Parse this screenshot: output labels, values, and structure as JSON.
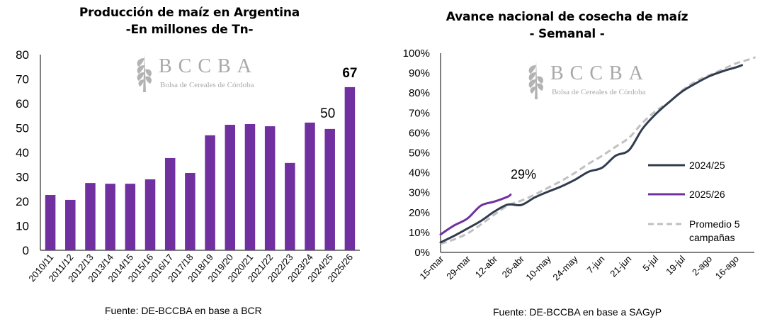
{
  "left": {
    "title_line1": "Producción de maíz en Argentina",
    "title_line2": "-En millones de Tn-",
    "source": "Fuente: DE-BCCBA en base a BCR",
    "watermark": {
      "logo": "wheat-icon",
      "name": "BCCBA",
      "subtitle": "Bolsa de Cereales de Córdoba"
    }
  },
  "right": {
    "title_line1": "Avance nacional de cosecha de maíz",
    "title_line2": "- Semanal -",
    "source": "Fuente: DE-BCCBA en base a SAGyP",
    "watermark": {
      "logo": "wheat-icon",
      "name": "BCCBA",
      "subtitle": "Bolsa de Cereales de Córdoba"
    }
  },
  "chart_data": [
    {
      "type": "bar",
      "title": "Producción de maíz en Argentina -En millones de Tn-",
      "xlabel": "",
      "ylabel": "",
      "ylim": [
        0,
        80
      ],
      "yticks": [
        0,
        10,
        20,
        30,
        40,
        50,
        60,
        70,
        80
      ],
      "grid": false,
      "color": "#7030A0",
      "categories": [
        "2010/11",
        "2011/12",
        "2012/13",
        "2013/14",
        "2014/15",
        "2015/16",
        "2016/17",
        "2017/18",
        "2018/19",
        "2019/20",
        "2020/21",
        "2021/22",
        "2022/23",
        "2023/24",
        "2024/25",
        "2025/26"
      ],
      "values": [
        22.6,
        20.6,
        27.5,
        27.2,
        27.2,
        29.0,
        37.7,
        31.6,
        47.0,
        51.3,
        51.6,
        50.7,
        35.7,
        52.2,
        49.6,
        66.7
      ],
      "data_labels": [
        {
          "category": "2024/25",
          "text": "50",
          "bold": false
        },
        {
          "category": "2025/26",
          "text": "67",
          "bold": true
        }
      ]
    },
    {
      "type": "line",
      "title": "Avance nacional de cosecha de maíz - Semanal -",
      "xlabel": "",
      "ylabel": "",
      "ylim": [
        0,
        100
      ],
      "yticks": [
        "0%",
        "10%",
        "20%",
        "30%",
        "40%",
        "50%",
        "60%",
        "70%",
        "80%",
        "90%",
        "100%"
      ],
      "grid": false,
      "legend_position": "right",
      "x_tick_labels": [
        "15-mar",
        "29-mar",
        "12-abr",
        "26-abr",
        "10-may",
        "24-may",
        "7-jun",
        "21-jun",
        "5-jul",
        "19-jul",
        "2-ago",
        "16-ago"
      ],
      "x_unit": "weeks since 15-mar",
      "series": [
        {
          "name": "2024/25",
          "color": "#323C4E",
          "style": "solid",
          "x": [
            0,
            1,
            2,
            3,
            4,
            5,
            6,
            7,
            8,
            9,
            10,
            11,
            12,
            13,
            14,
            15,
            16,
            17,
            18,
            19,
            20,
            21,
            22,
            22.4
          ],
          "values": [
            5,
            8.3,
            12,
            15.8,
            20.5,
            24,
            23.8,
            27.6,
            30.5,
            33.2,
            36.5,
            40.5,
            42.5,
            48.5,
            51.3,
            62,
            69.5,
            75.5,
            81,
            85,
            88.5,
            91,
            93,
            94
          ]
        },
        {
          "name": "2025/26",
          "color": "#7030A0",
          "style": "solid",
          "x": [
            0,
            1,
            2,
            3,
            4,
            5,
            5.2
          ],
          "values": [
            9,
            13.5,
            17,
            23.5,
            25.5,
            28,
            29
          ],
          "end_label": "29%"
        },
        {
          "name": "Promedio 5 campañas",
          "color": "#C0C0C0",
          "style": "dashed",
          "x": [
            0,
            1,
            2,
            3,
            4,
            5,
            6,
            7,
            8,
            9,
            10,
            11,
            12,
            13,
            14,
            15,
            16,
            17,
            18,
            19,
            20,
            21,
            22,
            23,
            23.4
          ],
          "values": [
            4.3,
            6.5,
            9.5,
            14,
            19,
            23.5,
            26,
            29,
            32.5,
            36,
            40,
            44.5,
            48.5,
            53,
            57.5,
            65,
            71,
            75.5,
            81.5,
            86,
            89,
            92,
            95,
            97,
            98
          ]
        }
      ]
    }
  ]
}
